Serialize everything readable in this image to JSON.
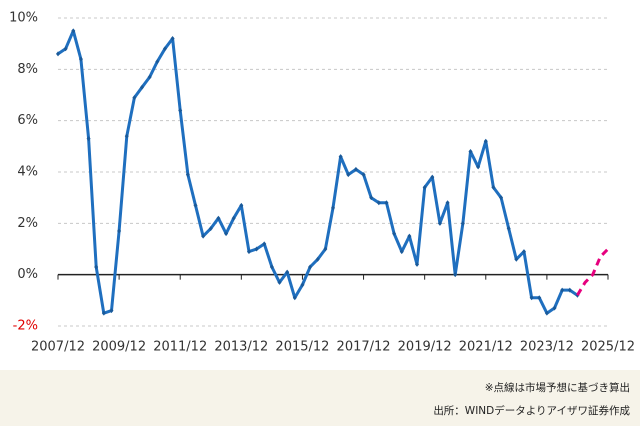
{
  "chart_data": {
    "type": "line",
    "categories": [
      "2007/12",
      null,
      null,
      null,
      null,
      null,
      null,
      null,
      "2009/12",
      null,
      null,
      null,
      null,
      null,
      null,
      null,
      "2011/12",
      null,
      null,
      null,
      null,
      null,
      null,
      null,
      "2013/12",
      null,
      null,
      null,
      null,
      null,
      null,
      null,
      "2015/12",
      null,
      null,
      null,
      null,
      null,
      null,
      null,
      "2017/12",
      null,
      null,
      null,
      null,
      null,
      null,
      null,
      "2019/12",
      null,
      null,
      null,
      null,
      null,
      null,
      null,
      "2021/12",
      null,
      null,
      null,
      null,
      null,
      null,
      null,
      "2023/12",
      null,
      null,
      null,
      null,
      null,
      null,
      null,
      "2025/12"
    ],
    "series": [
      {
        "color": "#1f6fbf",
        "style": "solid",
        "values": [
          8.6,
          8.8,
          9.5,
          8.4,
          5.3,
          0.3,
          -1.5,
          -1.4,
          1.7,
          5.4,
          6.9,
          7.3,
          7.7,
          8.3,
          8.8,
          9.2,
          6.4,
          3.9,
          2.7,
          1.5,
          1.8,
          2.2,
          1.6,
          2.2,
          2.7,
          0.9,
          1.0,
          1.2,
          0.3,
          -0.3,
          0.1,
          -0.9,
          -0.4,
          0.3,
          0.6,
          1.0,
          2.6,
          4.6,
          3.9,
          4.1,
          3.9,
          3.0,
          2.8,
          2.8,
          1.6,
          0.9,
          1.5,
          0.4,
          3.4,
          3.8,
          2.0,
          2.8,
          0.0,
          2.0,
          4.8,
          4.2,
          5.2,
          3.4,
          3.0,
          1.8,
          0.6,
          0.9,
          -0.9,
          -0.9,
          -1.5,
          -1.3,
          -0.6,
          -0.6,
          -0.8,
          null,
          null,
          null,
          null
        ]
      },
      {
        "color": "#e6007e",
        "style": "dashed",
        "values": [
          null,
          null,
          null,
          null,
          null,
          null,
          null,
          null,
          null,
          null,
          null,
          null,
          null,
          null,
          null,
          null,
          null,
          null,
          null,
          null,
          null,
          null,
          null,
          null,
          null,
          null,
          null,
          null,
          null,
          null,
          null,
          null,
          null,
          null,
          null,
          null,
          null,
          null,
          null,
          null,
          null,
          null,
          null,
          null,
          null,
          null,
          null,
          null,
          null,
          null,
          null,
          null,
          null,
          null,
          null,
          null,
          null,
          null,
          null,
          null,
          null,
          null,
          null,
          null,
          null,
          null,
          null,
          null,
          -0.8,
          -0.3,
          0.0,
          0.7,
          1.0
        ]
      }
    ],
    "ylim": [
      -2,
      10
    ],
    "yticks": [
      {
        "value": -2,
        "label": "-2%"
      },
      {
        "value": 0,
        "label": "0%"
      },
      {
        "value": 2,
        "label": "2%"
      },
      {
        "value": 4,
        "label": "4%"
      },
      {
        "value": 6,
        "label": "6%"
      },
      {
        "value": 8,
        "label": "8%"
      },
      {
        "value": 10,
        "label": "10%"
      }
    ],
    "grid": true,
    "notes": [
      "※点線は市場予想に基づき算出",
      "出所：WINDデータよりアイザワ証券作成"
    ]
  }
}
